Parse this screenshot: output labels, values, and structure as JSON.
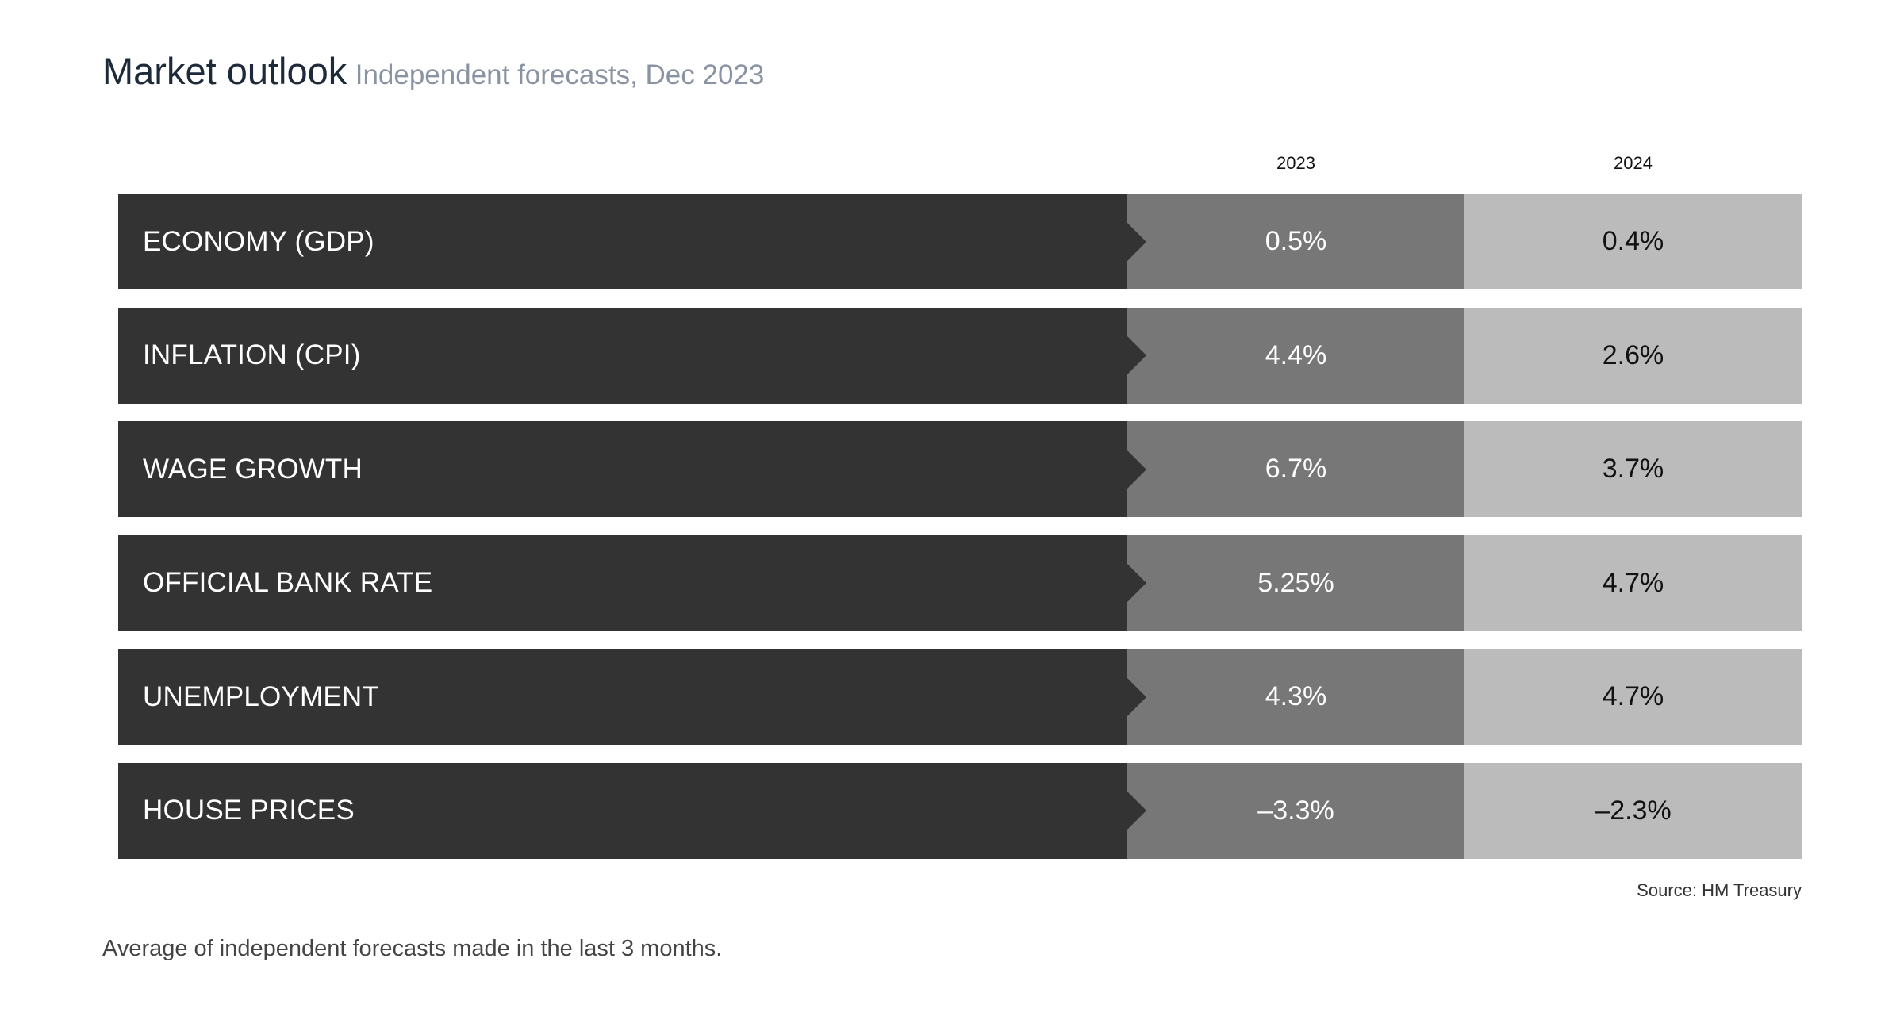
{
  "header": {
    "title": "Market outlook",
    "subtitle": "Independent forecasts, Dec 2023"
  },
  "chart_data": {
    "type": "table",
    "columns": [
      "2023",
      "2024"
    ],
    "rows": [
      {
        "label": "ECONOMY (GDP)",
        "values": [
          "0.5%",
          "0.4%"
        ]
      },
      {
        "label": "INFLATION (CPI)",
        "values": [
          "4.4%",
          "2.6%"
        ]
      },
      {
        "label": "WAGE GROWTH",
        "values": [
          "6.7%",
          "3.7%"
        ]
      },
      {
        "label": "OFFICIAL BANK RATE",
        "values": [
          "5.25%",
          "4.7%"
        ]
      },
      {
        "label": "UNEMPLOYMENT",
        "values": [
          "4.3%",
          "4.7%"
        ]
      },
      {
        "label": "HOUSE PRICES",
        "values": [
          "–3.3%",
          "–2.3%"
        ]
      }
    ],
    "colors": {
      "label_bg": "#333333",
      "col1_bg": "#777777",
      "col2_bg": "#bbbbbb"
    }
  },
  "source": "Source: HM Treasury",
  "footnote": "Average of independent forecasts made in the last 3 months."
}
